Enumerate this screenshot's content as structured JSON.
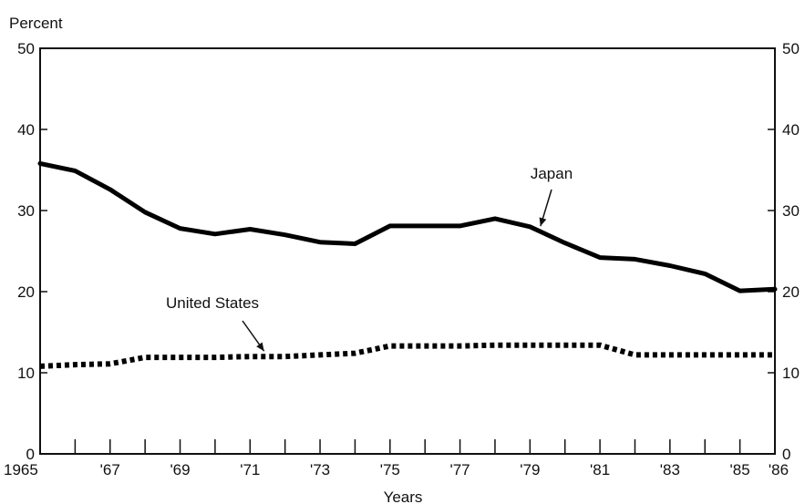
{
  "chart_data": {
    "type": "line",
    "xlabel": "Years",
    "ylabel": "Percent",
    "xlim": [
      1965,
      1986
    ],
    "ylim": [
      0,
      50
    ],
    "y_ticks": [
      0,
      10,
      20,
      30,
      40,
      50
    ],
    "x_tick_labels": [
      {
        "x": 1965,
        "label": "1965"
      },
      {
        "x": 1967,
        "label": "'67"
      },
      {
        "x": 1969,
        "label": "'69"
      },
      {
        "x": 1971,
        "label": "'71"
      },
      {
        "x": 1973,
        "label": "'73"
      },
      {
        "x": 1975,
        "label": "'75"
      },
      {
        "x": 1977,
        "label": "'77"
      },
      {
        "x": 1979,
        "label": "'79"
      },
      {
        "x": 1981,
        "label": "'81"
      },
      {
        "x": 1983,
        "label": "'83"
      },
      {
        "x": 1985,
        "label": "'85"
      },
      {
        "x": 1986,
        "label": "'86"
      }
    ],
    "right_axis_duplicated": true,
    "grid": false,
    "x": [
      1965,
      1966,
      1967,
      1968,
      1969,
      1970,
      1971,
      1972,
      1973,
      1974,
      1975,
      1976,
      1977,
      1978,
      1979,
      1980,
      1981,
      1982,
      1983,
      1984,
      1985,
      1986
    ],
    "series": [
      {
        "name": "Japan",
        "style": "solid",
        "color": "#000000",
        "values": [
          35.8,
          34.9,
          32.6,
          29.8,
          27.8,
          27.1,
          27.7,
          27.0,
          26.1,
          25.9,
          28.1,
          28.1,
          28.1,
          29.0,
          28.0,
          26.0,
          24.2,
          24.0,
          23.2,
          22.2,
          20.1,
          20.3
        ]
      },
      {
        "name": "United States",
        "style": "dotted",
        "color": "#000000",
        "values": [
          10.8,
          11.0,
          11.1,
          11.9,
          11.9,
          11.9,
          12.0,
          12.0,
          12.2,
          12.4,
          13.3,
          13.3,
          13.3,
          13.4,
          13.4,
          13.4,
          13.4,
          12.2,
          12.2,
          12.2,
          12.2,
          12.2
        ]
      }
    ],
    "annotations": [
      {
        "text": "Japan",
        "series": "Japan",
        "points_to_x": 1979.3
      },
      {
        "text": "United States",
        "series": "United States",
        "points_to_x": 1971.4
      }
    ]
  }
}
